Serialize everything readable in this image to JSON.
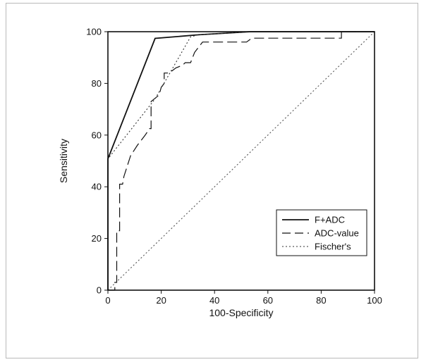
{
  "chart_data": {
    "type": "line",
    "title": "",
    "xlabel": "100-Specificity",
    "ylabel": "Sensitivity",
    "xlim": [
      0,
      100
    ],
    "ylim": [
      0,
      100
    ],
    "xticks": [
      "0",
      "20",
      "40",
      "60",
      "80",
      "100"
    ],
    "yticks": [
      "0",
      "20",
      "40",
      "60",
      "80",
      "100"
    ],
    "grid": false,
    "legend_position": "bottom-right",
    "series": [
      {
        "name": "F+ADC",
        "style": "solid",
        "color": "#111111",
        "points": [
          [
            0,
            0
          ],
          [
            0,
            50.8
          ],
          [
            17.7,
            97.4
          ],
          [
            34,
            98.8
          ],
          [
            53.5,
            100
          ],
          [
            100,
            100
          ]
        ]
      },
      {
        "name": "ADC-value",
        "style": "dashed",
        "color": "#111111",
        "points": [
          [
            0,
            0
          ],
          [
            2.6,
            0
          ],
          [
            2.6,
            3
          ],
          [
            3.3,
            3
          ],
          [
            3.3,
            23
          ],
          [
            4.4,
            23
          ],
          [
            4.4,
            41
          ],
          [
            5.5,
            41
          ],
          [
            6,
            44
          ],
          [
            8.5,
            52
          ],
          [
            11,
            56
          ],
          [
            12.5,
            58
          ],
          [
            14,
            60
          ],
          [
            15.6,
            62.5
          ],
          [
            16.2,
            62.5
          ],
          [
            16.2,
            73
          ],
          [
            19.2,
            75.5
          ],
          [
            20,
            78.5
          ],
          [
            21.1,
            80
          ],
          [
            21.1,
            84
          ],
          [
            23,
            84
          ],
          [
            25.5,
            86
          ],
          [
            28,
            87
          ],
          [
            29,
            88
          ],
          [
            31,
            88
          ],
          [
            32.5,
            92
          ],
          [
            35.5,
            96
          ],
          [
            52,
            96
          ],
          [
            54,
            97.5
          ],
          [
            87.6,
            97.5
          ],
          [
            87.6,
            100
          ],
          [
            100,
            100
          ]
        ]
      },
      {
        "name": "Fischer's",
        "style": "dotted",
        "color": "#333333",
        "points": [
          [
            0,
            0
          ],
          [
            0,
            50.8
          ],
          [
            17.7,
            74
          ],
          [
            31,
            98
          ],
          [
            34,
            98.8
          ],
          [
            53.5,
            100
          ],
          [
            100,
            100
          ]
        ]
      },
      {
        "name": "",
        "style": "dotted",
        "color": "#555555",
        "points": [
          [
            0,
            0
          ],
          [
            100,
            100
          ]
        ]
      }
    ]
  }
}
